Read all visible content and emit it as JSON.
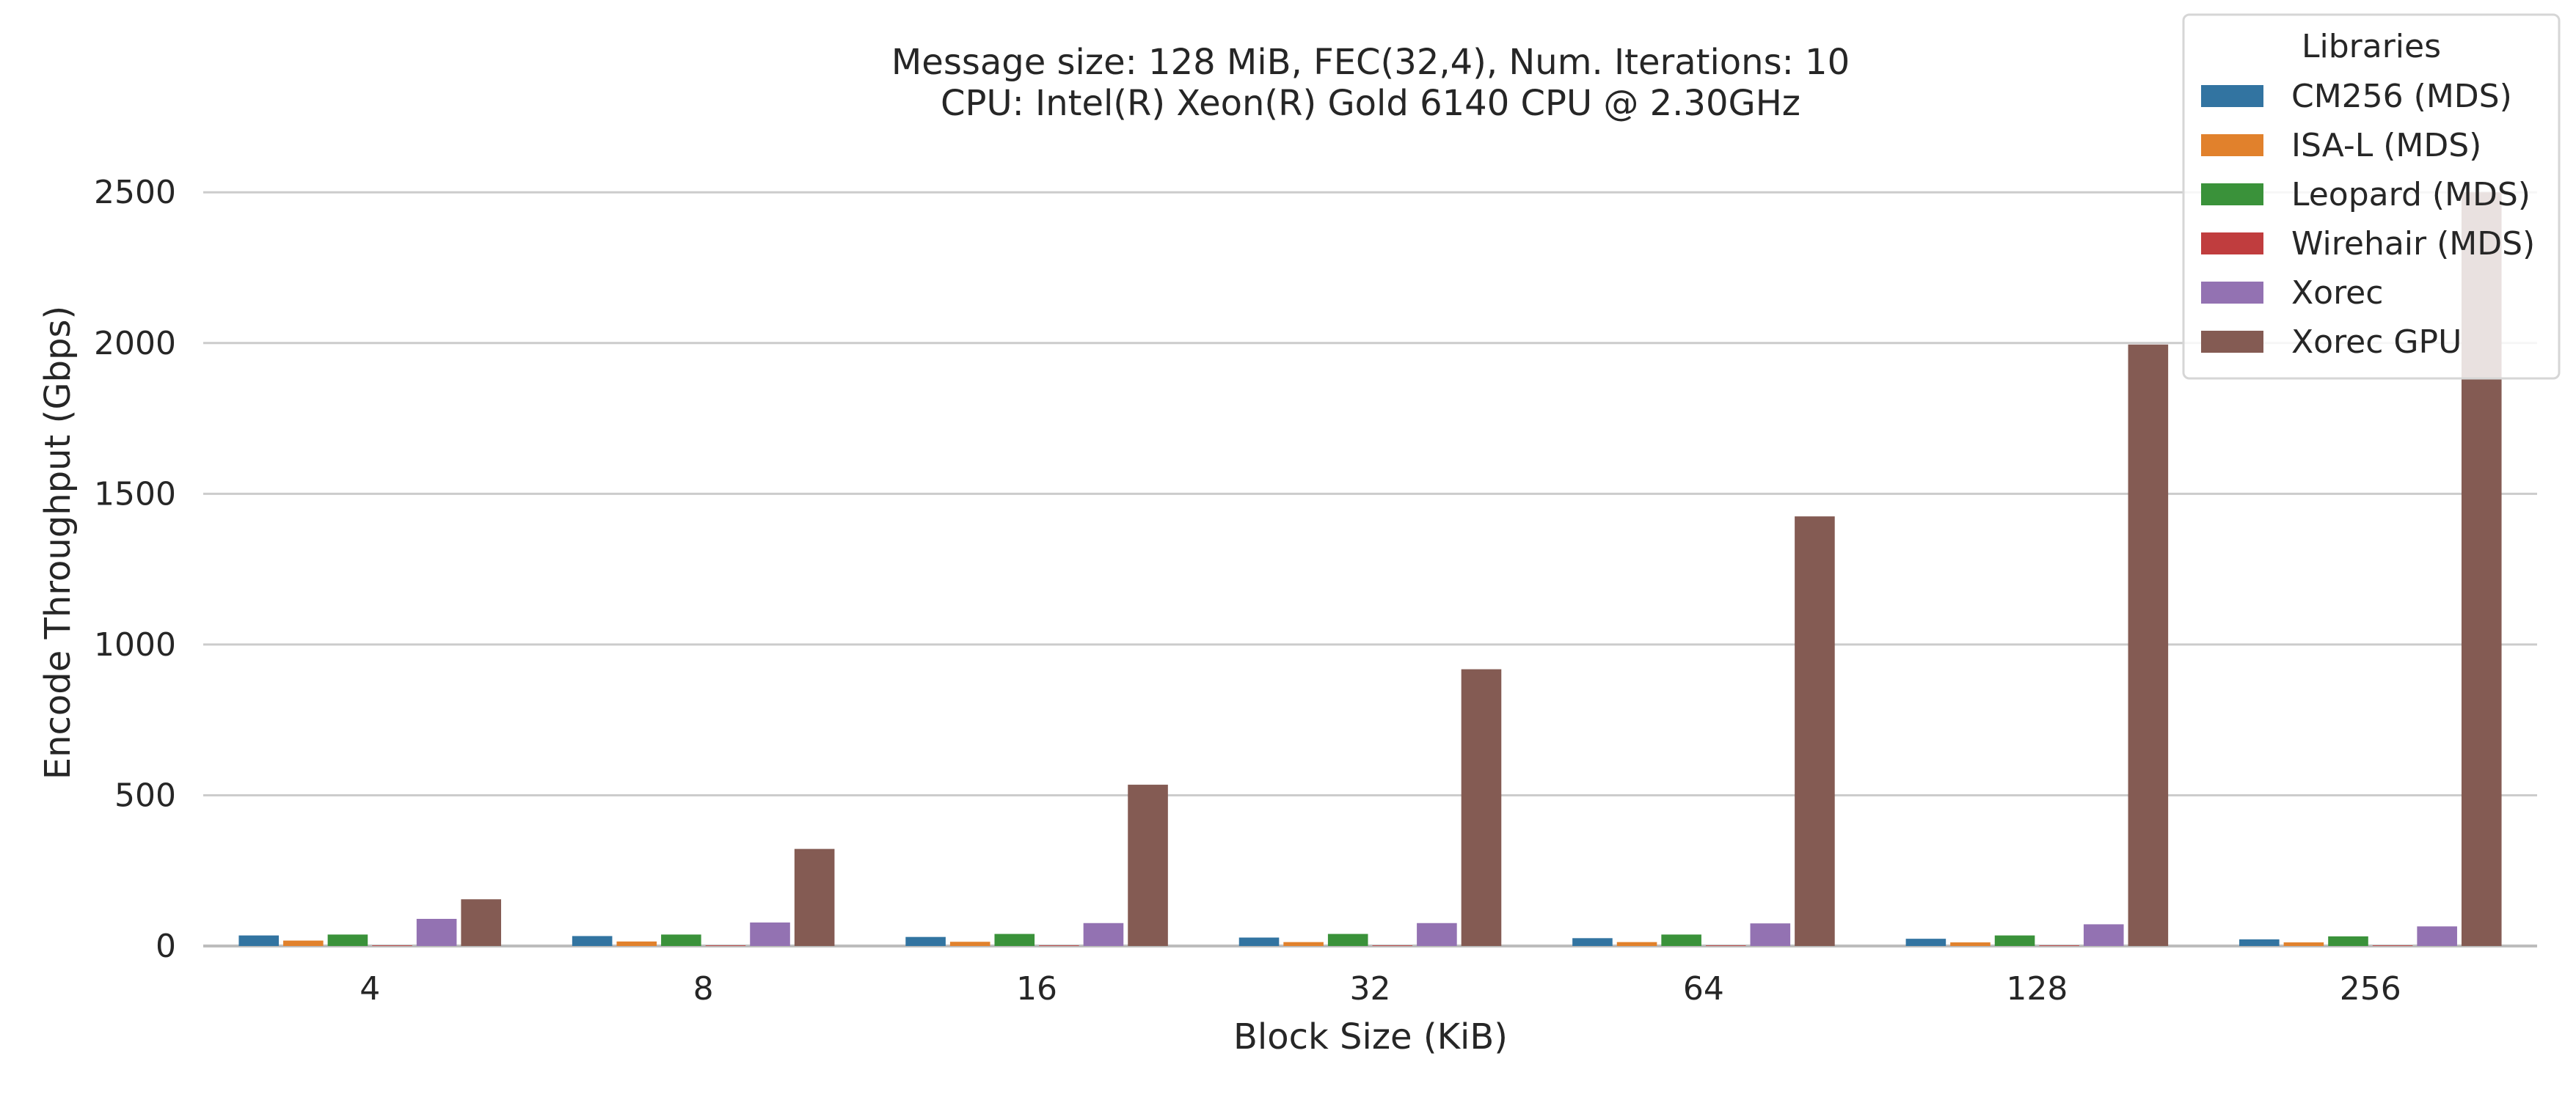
{
  "chart_data": {
    "type": "bar",
    "title": "Message size: 128 MiB, FEC(32,4), Num. Iterations: 10",
    "subtitle": "CPU: Intel(R) Xeon(R) Gold 6140 CPU @ 2.30GHz",
    "xlabel": "Block Size (KiB)",
    "ylabel": "Encode Throughput (Gbps)",
    "categories": [
      "4",
      "8",
      "16",
      "32",
      "64",
      "128",
      "256"
    ],
    "ylim": [
      0,
      2700
    ],
    "yticks": [
      0,
      500,
      1000,
      1500,
      2000,
      2500
    ],
    "grid": true,
    "legend": {
      "title": "Libraries",
      "position": "top-right"
    },
    "series": [
      {
        "name": "CM256 (MDS)",
        "color": "#3274a1",
        "values": [
          35,
          33,
          30,
          28,
          26,
          24,
          22
        ]
      },
      {
        "name": "ISA-L (MDS)",
        "color": "#e1812c",
        "values": [
          18,
          15,
          14,
          13,
          13,
          12,
          12
        ]
      },
      {
        "name": "Leopard (MDS)",
        "color": "#3a923a",
        "values": [
          38,
          38,
          40,
          40,
          38,
          35,
          32
        ]
      },
      {
        "name": "Wirehair (MDS)",
        "color": "#c03d3e",
        "values": [
          2,
          2,
          2,
          2,
          2,
          2,
          2
        ]
      },
      {
        "name": "Xorec",
        "color": "#9372b2",
        "values": [
          90,
          78,
          76,
          76,
          75,
          72,
          65
        ]
      },
      {
        "name": "Xorec GPU",
        "color": "#845b53",
        "values": [
          155,
          322,
          535,
          918,
          1425,
          1995,
          2500
        ]
      }
    ]
  }
}
